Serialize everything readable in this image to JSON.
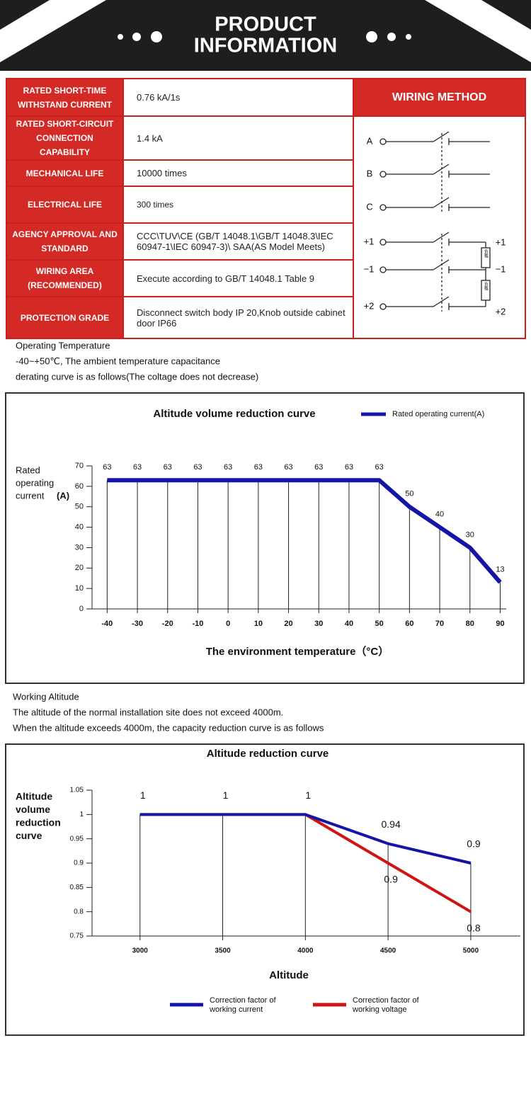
{
  "header": {
    "title": [
      "PRODUCT",
      "INFORMATION"
    ]
  },
  "table": {
    "rows": [
      [
        "RATED SHORT-TIME WITHSTAND CURRENT",
        "0.76 kA/1s"
      ],
      [
        "RATED SHORT-CIRCUIT CONNECTION CAPABILITY",
        "1.4 kA"
      ],
      [
        "MECHANICAL LIFE",
        "10000 times"
      ],
      [
        "ELECTRICAL LIFE",
        "300 times"
      ],
      [
        "AGENCY APPROVAL AND STANDARD",
        "CCC\\TUV\\CE (GB/T 14048.1\\GB/T 14048.3\\IEC 60947-1\\IEC 60947-3)\\ SAA(AS Model Meets)"
      ],
      [
        "WIRING AREA (RECOMMENDED)",
        "Execute according to GB/T 14048.1 Table 9"
      ],
      [
        "PROTECTION GRADE",
        "Disconnect switch body IP 20,Knob outside cabinet door IP66"
      ]
    ]
  },
  "wiring": {
    "title": "WIRING METHOD",
    "left_labels": [
      "A",
      "B",
      "C",
      "+1",
      "−1",
      "+2"
    ],
    "right_labels": [
      "+1",
      "−1",
      "+2"
    ],
    "load_label": "负载"
  },
  "notes_temperature": [
    "Operating Temperature",
    " -40~+50℃, The ambient temperature capacitance",
    "derating curve is as follows(The coltage does not decrease)"
  ],
  "notes_altitude": [
    "Working Altitude",
    "The altitude of the normal installation site does not exceed 4000m.",
    "When the altitude exceeds 4000m, the capacity reduction curve is as follows"
  ],
  "chart_data": [
    {
      "type": "line",
      "title": "Altitude volume reduction curve",
      "y_label": [
        "Rated",
        "operating",
        "current"
      ],
      "y_unit": "(A)",
      "x_label": "The environment temperature（°C）",
      "x": [
        -40,
        -30,
        -20,
        -10,
        0,
        10,
        20,
        30,
        40,
        50,
        60,
        70,
        80,
        90
      ],
      "series": [
        {
          "name": "Rated operating current(A)",
          "color": "#1414a6",
          "values": [
            63,
            63,
            63,
            63,
            63,
            63,
            63,
            63,
            63,
            63,
            50,
            40,
            30,
            13
          ]
        }
      ],
      "xlim": [
        -45,
        92
      ],
      "xticks": [
        -40,
        -30,
        -20,
        -10,
        0,
        10,
        20,
        30,
        40,
        50,
        60,
        70,
        80,
        90
      ],
      "ylim": [
        0,
        70
      ],
      "yticks": [
        0,
        10,
        20,
        30,
        40,
        50,
        60,
        70
      ],
      "legend": "top-right"
    },
    {
      "type": "line",
      "title": "Altitude reduction curve",
      "y_label": [
        "Altitude",
        "volume",
        "reduction",
        "curve"
      ],
      "x_label": "Altitude",
      "x": [
        3000,
        3500,
        4000,
        4500,
        5000
      ],
      "series": [
        {
          "name": "Correction factor of working current",
          "color": "#1414a6",
          "values": [
            1,
            1,
            1,
            0.94,
            0.9
          ]
        },
        {
          "name": "Correction factor of working voltage",
          "color": "#d01414",
          "values": [
            1,
            1,
            1,
            0.9,
            0.8
          ]
        }
      ],
      "xlim": [
        2710,
        5300
      ],
      "xticks": [
        3000,
        3500,
        4000,
        4500,
        5000
      ],
      "ylim": [
        0.75,
        1.05
      ],
      "yticks": [
        0.75,
        0.8,
        0.85,
        0.9,
        0.95,
        1,
        1.05
      ],
      "legend": "bottom"
    }
  ]
}
